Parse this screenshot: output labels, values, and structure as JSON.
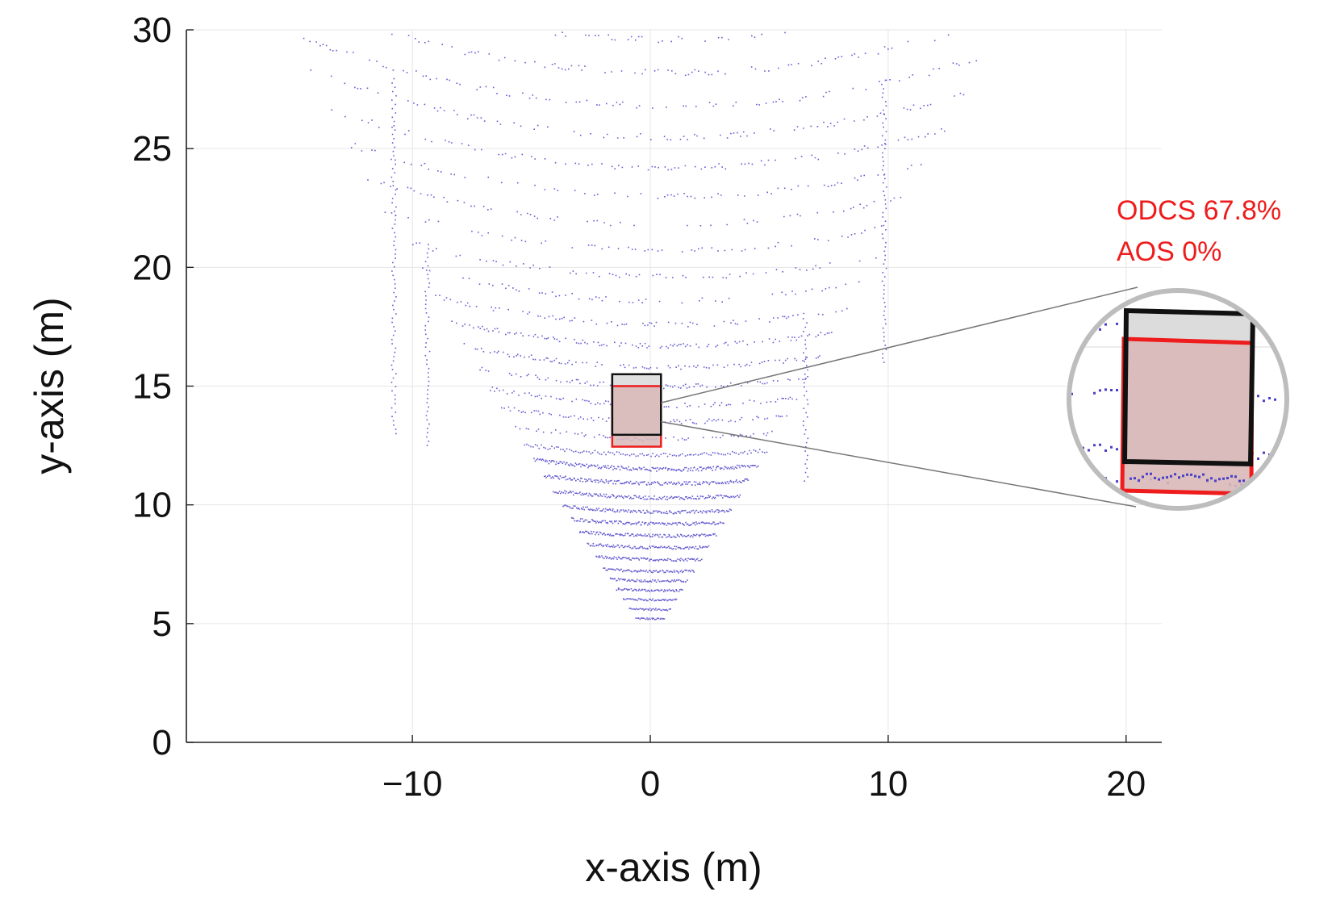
{
  "colors": {
    "points": "#4a40c8",
    "gt_box": "#111111",
    "pred_box": "#ee1c1c",
    "box_fill": "#d9b8b8",
    "gt_top_fill": "#dcdcdc",
    "grid": "#e6e6e6",
    "annotation": "#ee1c1c"
  },
  "chart_data": {
    "type": "scatter",
    "title": "",
    "xlabel": "x-axis (m)",
    "ylabel": "y-axis (m)",
    "xlim": [
      -19.5,
      21.5
    ],
    "ylim": [
      0,
      30
    ],
    "xticks": [
      -10,
      0,
      10,
      20
    ],
    "xtick_labels": [
      "−10",
      "0",
      "10",
      "20"
    ],
    "yticks": [
      0,
      5,
      10,
      15,
      20,
      25,
      30
    ],
    "ytick_labels": [
      "0",
      "5",
      "10",
      "15",
      "20",
      "25",
      "30"
    ],
    "grid": true,
    "series": [
      {
        "name": "LiDAR point cloud",
        "description_of_shape": "fan-shaped bird's-eye-view scan; concentric arcs from y=5.2 at x=0 widening to x≈[-15,14] near y=28",
        "ring_y_at_center": [
          5.2,
          5.6,
          6.0,
          6.4,
          6.8,
          7.2,
          7.7,
          8.2,
          8.7,
          9.2,
          9.7,
          10.3,
          10.9,
          11.5,
          12.1,
          12.8,
          13.5,
          14.2,
          15.0,
          15.8,
          16.7,
          17.6,
          18.6,
          19.6,
          20.7,
          21.8,
          23.0,
          24.2,
          25.5,
          26.8,
          28.2,
          29.6
        ]
      }
    ],
    "boxes": [
      {
        "name": "ground truth",
        "x": [
          -1.6,
          0.45
        ],
        "y": [
          12.95,
          15.5
        ]
      },
      {
        "name": "prediction",
        "x": [
          -1.6,
          0.45
        ],
        "y": [
          12.45,
          15.0
        ]
      }
    ],
    "annotations": [
      {
        "text": "ODCS 67.8%"
      },
      {
        "text": "AOS 0%"
      }
    ]
  }
}
